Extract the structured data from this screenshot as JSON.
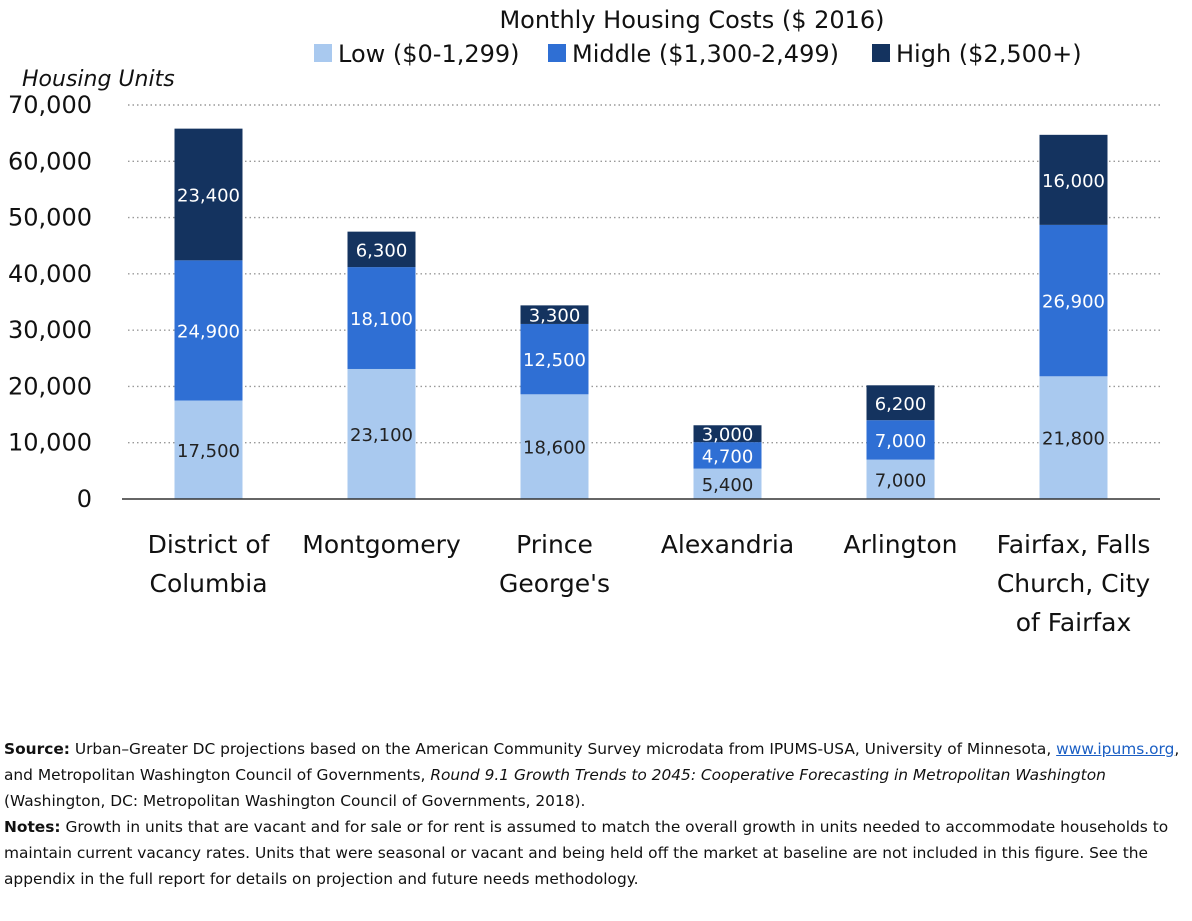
{
  "chart_data": {
    "type": "bar",
    "stacked": true,
    "legend_title": "Monthly Housing Costs ($ 2016)",
    "ylabel": "Housing Units",
    "ylim": [
      0,
      70000
    ],
    "yticks": [
      0,
      10000,
      20000,
      30000,
      40000,
      50000,
      60000,
      70000
    ],
    "ytick_labels": [
      "0",
      "10,000",
      "20,000",
      "30,000",
      "40,000",
      "50,000",
      "60,000",
      "70,000"
    ],
    "grid": true,
    "legend_position": "top",
    "categories": [
      [
        "District of",
        "Columbia"
      ],
      [
        "Montgomery"
      ],
      [
        "Prince",
        "George's"
      ],
      [
        "Alexandria"
      ],
      [
        "Arlington"
      ],
      [
        "Fairfax, Falls",
        "Church, City",
        "of Fairfax"
      ]
    ],
    "series": [
      {
        "name": "Low ($0-1,299)",
        "color": "#a9c9ef",
        "label_color": "#222222",
        "values": [
          17500,
          23100,
          18600,
          5400,
          7000,
          21800
        ],
        "labels": [
          "17,500",
          "23,100",
          "18,600",
          "5,400",
          "7,000",
          "21,800"
        ]
      },
      {
        "name": "Middle ($1,300-2,499)",
        "color": "#2f6fd4",
        "label_color": "#ffffff",
        "values": [
          24900,
          18100,
          12500,
          4700,
          7000,
          26900
        ],
        "labels": [
          "24,900",
          "18,100",
          "12,500",
          "4,700",
          "7,000",
          "26,900"
        ]
      },
      {
        "name": "High ($2,500+)",
        "color": "#14335f",
        "label_color": "#ffffff",
        "values": [
          23400,
          6300,
          3300,
          3000,
          6200,
          16000
        ],
        "labels": [
          "23,400",
          "6,300",
          "3,300",
          "3,000",
          "6,200",
          "16,000"
        ]
      }
    ]
  },
  "source": {
    "label": "Source:",
    "text_1": " Urban–Greater DC projections based on the American Community Survey microdata from IPUMS-USA, University of Minnesota, ",
    "link": "www.ipums.org",
    "text_2": ", and Metropolitan Washington Council of Governments, ",
    "title_italic": "Round 9.1 Growth Trends to 2045: Cooperative Forecasting in Metropolitan Washington",
    "text_3": " (Washington, DC: Metropolitan Washington Council of Governments, 2018)."
  },
  "notes": {
    "label": "Notes:",
    "text": " Growth in units that are vacant and for sale or for rent is assumed to match the overall growth in units needed to accommodate households to maintain current vacancy rates. Units that were seasonal or vacant and being held off the market at baseline are not included in this figure. See the appendix in the full report for details on projection and future needs methodology."
  }
}
